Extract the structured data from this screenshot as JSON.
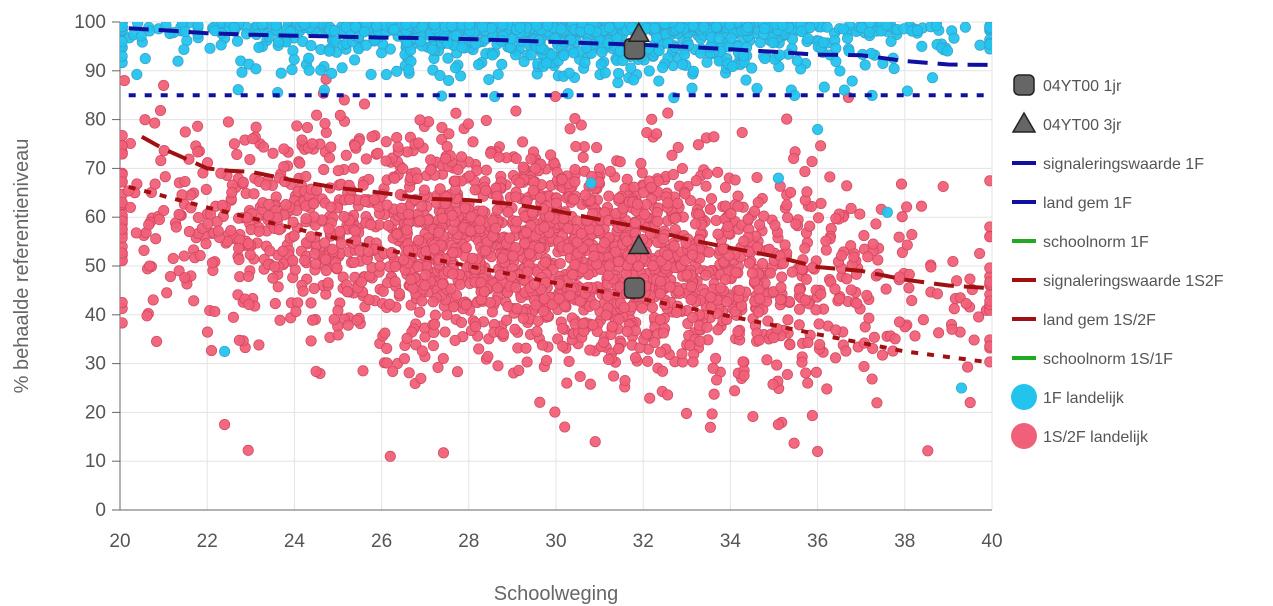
{
  "chart_data": {
    "type": "scatter",
    "xlabel": "Schoolweging",
    "ylabel": "% behaalde referentieniveau",
    "xlim": [
      20,
      40
    ],
    "ylim": [
      0,
      100
    ],
    "xticks": [
      20,
      22,
      24,
      26,
      28,
      30,
      32,
      34,
      36,
      38,
      40
    ],
    "yticks": [
      0,
      10,
      20,
      30,
      40,
      50,
      60,
      70,
      80,
      90,
      100
    ],
    "grid": true,
    "legend_position": "right",
    "colors": {
      "navy": "#1010a0",
      "darkred": "#a01010",
      "green": "#22aa22",
      "cyan": "#22c4ee",
      "pink": "#f06078",
      "marker": "#666666"
    },
    "legend": [
      {
        "label": "04YT00 1jr",
        "symbol": "square",
        "color": "#666666"
      },
      {
        "label": "04YT00 3jr",
        "symbol": "triangle",
        "color": "#666666"
      },
      {
        "label": "signaleringswaarde 1F",
        "symbol": "line",
        "color": "#1010a0"
      },
      {
        "label": "land gem  1F",
        "symbol": "line",
        "color": "#1010a0"
      },
      {
        "label": "schoolnorm 1F",
        "symbol": "line",
        "color": "#22aa22"
      },
      {
        "label": "signaleringswaarde 1S2F",
        "symbol": "line",
        "color": "#a01010"
      },
      {
        "label": "land gem  1S/2F",
        "symbol": "line",
        "color": "#a01010"
      },
      {
        "label": "schoolnorm 1S/1F",
        "symbol": "line",
        "color": "#22aa22"
      },
      {
        "label": "1F landelijk",
        "symbol": "circle",
        "color": "#22c4ee"
      },
      {
        "label": "1S/2F landelijk",
        "symbol": "circle",
        "color": "#f06078"
      }
    ],
    "series": [
      {
        "name": "signaleringswaarde 1F",
        "kind": "line",
        "style": "dotted",
        "color": "#1010a0",
        "x": [
          20.2,
          39.9
        ],
        "y": [
          85,
          85
        ]
      },
      {
        "name": "land gem  1F",
        "kind": "line",
        "style": "dashed",
        "color": "#1010a0",
        "x": [
          20.2,
          21,
          22,
          23,
          24,
          25,
          26,
          27,
          28,
          29,
          30,
          31,
          32,
          33,
          34,
          35,
          36,
          37,
          38,
          39,
          39.9
        ],
        "y": [
          98.7,
          98.3,
          97.7,
          97.4,
          97.2,
          97.0,
          96.8,
          96.7,
          96.5,
          96.2,
          95.9,
          95.6,
          95.3,
          94.9,
          94.4,
          93.9,
          93.3,
          93.2,
          92.0,
          91.3,
          91.2
        ]
      },
      {
        "name": "signaleringswaarde 1S2F",
        "kind": "line",
        "style": "dotted",
        "color": "#a01010",
        "x": [
          20.2,
          22,
          24,
          26,
          28,
          30,
          32,
          34,
          36,
          38,
          39.9
        ],
        "y": [
          66.2,
          62.0,
          57.7,
          53.5,
          50.0,
          46.5,
          43.2,
          39.7,
          36.0,
          32.5,
          30.3
        ]
      },
      {
        "name": "land gem  1S/2F",
        "kind": "line",
        "style": "dashed",
        "color": "#a01010",
        "x": [
          20.5,
          21,
          21.5,
          22,
          22.5,
          23,
          24,
          25,
          26,
          27,
          28,
          29,
          30,
          31,
          32,
          33,
          34,
          35,
          36,
          37,
          38,
          39,
          39.9
        ],
        "y": [
          76.5,
          74.0,
          72.0,
          70.0,
          69.5,
          69.3,
          67.5,
          66.0,
          65.0,
          63.8,
          63.5,
          62.7,
          61.3,
          59.5,
          57.8,
          55.5,
          53.7,
          52.0,
          49.8,
          49.0,
          47.2,
          46.0,
          45.5
        ]
      },
      {
        "name": "04YT00 1jr",
        "kind": "marker",
        "symbol": "square",
        "color": "#666666",
        "x": [
          31.8,
          31.8
        ],
        "y": [
          94.5,
          45.5
        ]
      },
      {
        "name": "04YT00 3jr",
        "kind": "marker",
        "symbol": "triangle",
        "color": "#666666",
        "x": [
          31.9,
          31.9
        ],
        "y": [
          97.5,
          54.0
        ]
      },
      {
        "name": "1F landelijk",
        "kind": "scatter",
        "color": "#22c4ee",
        "n": 1200,
        "cluster": {
          "x_mean": 30,
          "x_sd": 4.2,
          "y_mean": 94,
          "y_sd": 5.5
        },
        "x": [
          22.4,
          39.3,
          37.6,
          36.0,
          35.1,
          30.8
        ],
        "y": [
          32.5,
          25.0,
          61.0,
          78.0,
          68.0,
          67.0
        ]
      },
      {
        "name": "1S/2F landelijk",
        "kind": "scatter",
        "color": "#f06078",
        "n": 2400,
        "cluster": {
          "x_mean": 29.6,
          "x_sd": 4.3,
          "y_mean": 55,
          "y_sd": 14
        },
        "x": [
          22.4,
          26.2,
          36.0,
          30.9,
          30.2,
          39.5,
          20.1,
          21.0,
          35.1
        ],
        "y": [
          17.5,
          11.0,
          12.0,
          14.0,
          17.0,
          22.0,
          88.0,
          87.0,
          17.5
        ]
      }
    ]
  }
}
